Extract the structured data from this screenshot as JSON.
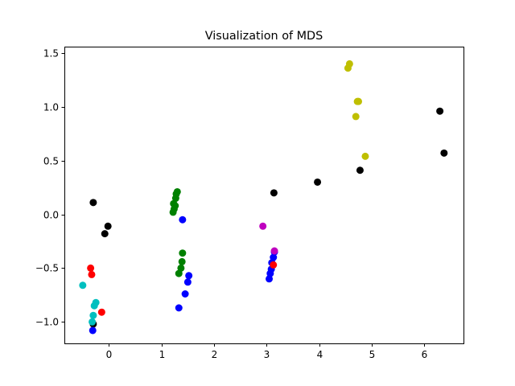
{
  "chart_data": {
    "type": "scatter",
    "title": "Visualization of MDS",
    "xlabel": "",
    "ylabel": "",
    "xlim": [
      -0.85,
      6.75
    ],
    "ylim": [
      -1.2,
      1.56
    ],
    "xticks": [
      0,
      1,
      2,
      3,
      4,
      5,
      6
    ],
    "xtick_labels": [
      "0",
      "1",
      "2",
      "3",
      "4",
      "5",
      "6"
    ],
    "yticks": [
      -1.0,
      -0.5,
      0.0,
      0.5,
      1.0,
      1.5
    ],
    "ytick_labels": [
      "−1.0",
      "−0.5",
      "0.0",
      "0.5",
      "1.0",
      "1.5"
    ],
    "grid": false,
    "series": [
      {
        "color": "#000000",
        "points": [
          {
            "x": -0.3,
            "y": 0.11
          },
          {
            "x": -0.02,
            "y": -0.11
          },
          {
            "x": -0.08,
            "y": -0.18
          },
          {
            "x": 3.14,
            "y": 0.2
          },
          {
            "x": 3.97,
            "y": 0.3
          },
          {
            "x": 4.78,
            "y": 0.41
          },
          {
            "x": 6.3,
            "y": 0.96
          },
          {
            "x": 6.38,
            "y": 0.57
          },
          {
            "x": -0.3,
            "y": -1.02
          }
        ]
      },
      {
        "color": "#bfbf00",
        "points": [
          {
            "x": 4.58,
            "y": 1.4
          },
          {
            "x": 4.55,
            "y": 1.36
          },
          {
            "x": 4.73,
            "y": 1.05
          },
          {
            "x": 4.75,
            "y": 1.05
          },
          {
            "x": 4.7,
            "y": 0.91
          },
          {
            "x": 4.88,
            "y": 0.54
          }
        ]
      },
      {
        "color": "#008000",
        "points": [
          {
            "x": 1.3,
            "y": 0.21
          },
          {
            "x": 1.28,
            "y": 0.19
          },
          {
            "x": 1.27,
            "y": 0.15
          },
          {
            "x": 1.23,
            "y": 0.1
          },
          {
            "x": 1.26,
            "y": 0.08
          },
          {
            "x": 1.24,
            "y": 0.05
          },
          {
            "x": 1.22,
            "y": 0.02
          },
          {
            "x": 1.4,
            "y": -0.36
          },
          {
            "x": 1.39,
            "y": -0.44
          },
          {
            "x": 1.37,
            "y": -0.5
          },
          {
            "x": 1.33,
            "y": -0.55
          }
        ]
      },
      {
        "color": "#0000ff",
        "points": [
          {
            "x": 1.4,
            "y": -0.05
          },
          {
            "x": 1.52,
            "y": -0.57
          },
          {
            "x": 1.5,
            "y": -0.63
          },
          {
            "x": 1.45,
            "y": -0.74
          },
          {
            "x": 1.33,
            "y": -0.87
          },
          {
            "x": 3.15,
            "y": -0.35
          },
          {
            "x": 3.13,
            "y": -0.4
          },
          {
            "x": 3.1,
            "y": -0.45
          },
          {
            "x": 3.09,
            "y": -0.51
          },
          {
            "x": 3.07,
            "y": -0.55
          },
          {
            "x": 3.05,
            "y": -0.6
          },
          {
            "x": -0.31,
            "y": -1.08
          }
        ]
      },
      {
        "color": "#bf00bf",
        "points": [
          {
            "x": 2.93,
            "y": -0.11
          },
          {
            "x": 3.15,
            "y": -0.34
          }
        ]
      },
      {
        "color": "#ff0000",
        "points": [
          {
            "x": -0.35,
            "y": -0.5
          },
          {
            "x": -0.33,
            "y": -0.56
          },
          {
            "x": -0.14,
            "y": -0.91
          },
          {
            "x": 3.13,
            "y": -0.47
          }
        ]
      },
      {
        "color": "#00bfbf",
        "points": [
          {
            "x": -0.5,
            "y": -0.66
          },
          {
            "x": -0.25,
            "y": -0.82
          },
          {
            "x": -0.28,
            "y": -0.85
          },
          {
            "x": -0.3,
            "y": -0.94
          },
          {
            "x": -0.32,
            "y": -1.0
          }
        ]
      }
    ]
  }
}
